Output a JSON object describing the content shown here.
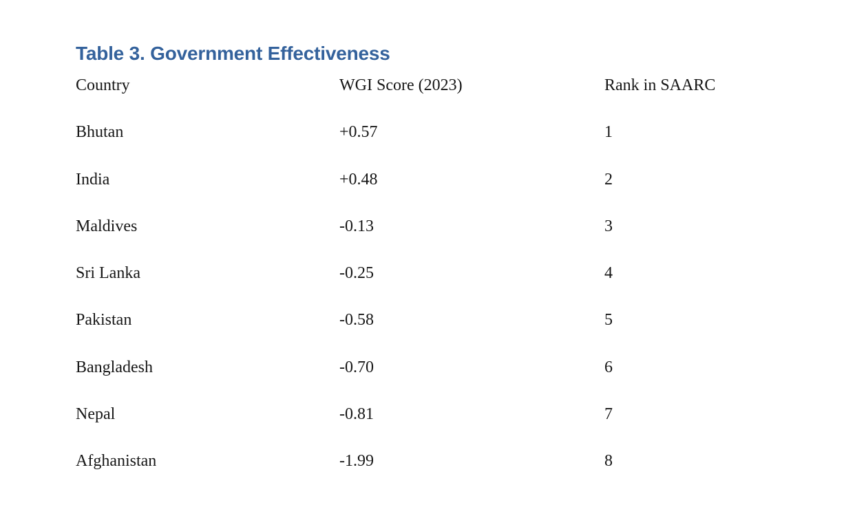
{
  "colors": {
    "title-accent": "#34629c",
    "text": "#161616",
    "page-background": "#ffffff"
  },
  "title": "Table 3. Government Effectiveness",
  "table": {
    "columns": [
      "Country",
      "WGI Score (2023)",
      "Rank in SAARC"
    ],
    "rows": [
      {
        "country": "Bhutan",
        "wgi_score": "+0.57",
        "rank": "1"
      },
      {
        "country": "India",
        "wgi_score": "+0.48",
        "rank": "2"
      },
      {
        "country": "Maldives",
        "wgi_score": "-0.13",
        "rank": "3"
      },
      {
        "country": "Sri Lanka",
        "wgi_score": "-0.25",
        "rank": "4"
      },
      {
        "country": "Pakistan",
        "wgi_score": "-0.58",
        "rank": "5"
      },
      {
        "country": "Bangladesh",
        "wgi_score": "-0.70",
        "rank": "6"
      },
      {
        "country": "Nepal",
        "wgi_score": "-0.81",
        "rank": "7"
      },
      {
        "country": "Afghanistan",
        "wgi_score": "-1.99",
        "rank": "8"
      }
    ]
  }
}
